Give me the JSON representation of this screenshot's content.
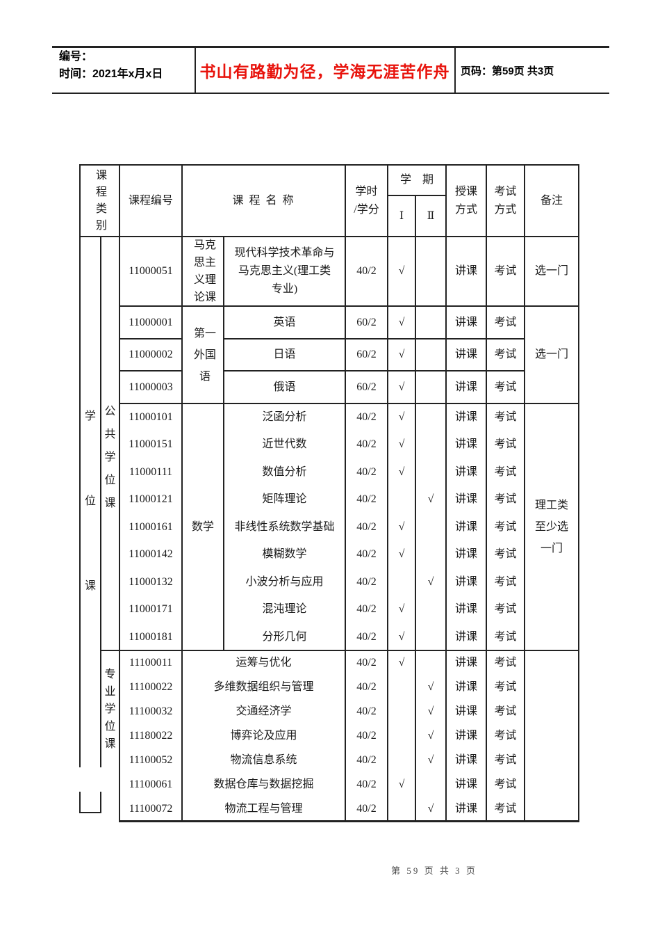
{
  "header_bar": {
    "number_label": "编号：",
    "date_label": "时间：2021年x月x日",
    "slogan": "书山有路勤为径，学海无涯苦作舟",
    "slogan_color": "#e8120b",
    "page_label": "页码：第59页 共3页"
  },
  "footer": {
    "page_text": "第 59 页 共 3 页"
  },
  "table": {
    "header": {
      "category": "课程类别",
      "code": "课程编号",
      "name": "课 程 名 称",
      "hours": "学时\n/学分",
      "semester": "学　期",
      "sem1": "Ⅰ",
      "sem2": "Ⅱ",
      "teach": "授课\n方式",
      "exam": "考试\n方式",
      "note": "备注"
    },
    "category_main": "学位课",
    "category_public": "公共学位课",
    "category_professional": "专业学位课",
    "subcats": {
      "marx": "马克思主义理论课",
      "foreign": "第一外国语",
      "math": "数学"
    },
    "notes": {
      "pick_one_marx": "选一门",
      "pick_one_lang": "选一门",
      "math_note": "理工类至少选一门"
    },
    "rows": [
      {
        "code": "11000051",
        "name": "现代科学技术革命与\n马克思主义(理工类\n专业)",
        "hours": "40/2",
        "sem1": "√",
        "sem2": "",
        "teach": "讲课",
        "exam": "考试"
      },
      {
        "code": "11000001",
        "name": "英语",
        "hours": "60/2",
        "sem1": "√",
        "sem2": "",
        "teach": "讲课",
        "exam": "考试"
      },
      {
        "code": "11000002",
        "name": "日语",
        "hours": "60/2",
        "sem1": "√",
        "sem2": "",
        "teach": "讲课",
        "exam": "考试"
      },
      {
        "code": "11000003",
        "name": "俄语",
        "hours": "60/2",
        "sem1": "√",
        "sem2": "",
        "teach": "讲课",
        "exam": "考试"
      },
      {
        "code": "11000101",
        "name": "泛函分析",
        "hours": "40/2",
        "sem1": "√",
        "sem2": "",
        "teach": "讲课",
        "exam": "考试"
      },
      {
        "code": "11000151",
        "name": "近世代数",
        "hours": "40/2",
        "sem1": "√",
        "sem2": "",
        "teach": "讲课",
        "exam": "考试"
      },
      {
        "code": "11000111",
        "name": "数值分析",
        "hours": "40/2",
        "sem1": "√",
        "sem2": "",
        "teach": "讲课",
        "exam": "考试"
      },
      {
        "code": "11000121",
        "name": "矩阵理论",
        "hours": "40/2",
        "sem1": "",
        "sem2": "√",
        "teach": "讲课",
        "exam": "考试"
      },
      {
        "code": "11000161",
        "name": "非线性系统数学基础",
        "hours": "40/2",
        "sem1": "√",
        "sem2": "",
        "teach": "讲课",
        "exam": "考试"
      },
      {
        "code": "11000142",
        "name": "模糊数学",
        "hours": "40/2",
        "sem1": "√",
        "sem2": "",
        "teach": "讲课",
        "exam": "考试"
      },
      {
        "code": "11000132",
        "name": "小波分析与应用",
        "hours": "40/2",
        "sem1": "",
        "sem2": "√",
        "teach": "讲课",
        "exam": "考试"
      },
      {
        "code": "11000171",
        "name": "混沌理论",
        "hours": "40/2",
        "sem1": "√",
        "sem2": "",
        "teach": "讲课",
        "exam": "考试"
      },
      {
        "code": "11000181",
        "name": "分形几何",
        "hours": "40/2",
        "sem1": "√",
        "sem2": "",
        "teach": "讲课",
        "exam": "考试"
      },
      {
        "code": "11100011",
        "name": "运筹与优化",
        "hours": "40/2",
        "sem1": "√",
        "sem2": "",
        "teach": "讲课",
        "exam": "考试"
      },
      {
        "code": "11100022",
        "name": "多维数据组织与管理",
        "hours": "40/2",
        "sem1": "",
        "sem2": "√",
        "teach": "讲课",
        "exam": "考试"
      },
      {
        "code": "11100032",
        "name": "交通经济学",
        "hours": "40/2",
        "sem1": "",
        "sem2": "√",
        "teach": "讲课",
        "exam": "考试"
      },
      {
        "code": "11180022",
        "name": "博弈论及应用",
        "hours": "40/2",
        "sem1": "",
        "sem2": "√",
        "teach": "讲课",
        "exam": "考试"
      },
      {
        "code": "11100052",
        "name": "物流信息系统",
        "hours": "40/2",
        "sem1": "",
        "sem2": "√",
        "teach": "讲课",
        "exam": "考试"
      },
      {
        "code": "11100061",
        "name": "数据仓库与数据挖掘",
        "hours": "40/2",
        "sem1": "√",
        "sem2": "",
        "teach": "讲课",
        "exam": "考试"
      },
      {
        "code": "11100072",
        "name": "物流工程与管理",
        "hours": "40/2",
        "sem1": "",
        "sem2": "√",
        "teach": "讲课",
        "exam": "考试"
      }
    ]
  }
}
